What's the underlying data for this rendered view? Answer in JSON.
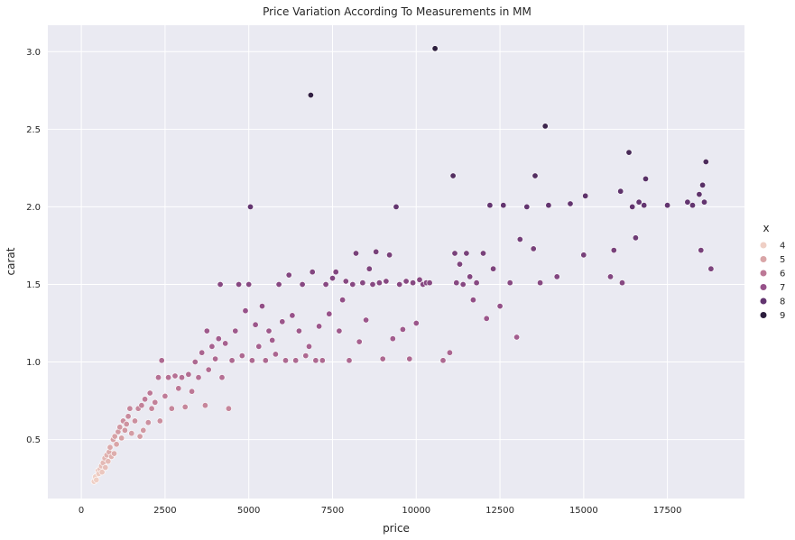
{
  "chart_data": {
    "type": "scatter",
    "title": "Price Variation According To Measurements in MM",
    "xlabel": "price",
    "ylabel": "carat",
    "xlim": [
      -1000,
      19800
    ],
    "ylim": [
      0.12,
      3.17
    ],
    "xticks": [
      0,
      2500,
      5000,
      7500,
      10000,
      12500,
      15000,
      17500
    ],
    "yticks": [
      0.5,
      1.0,
      1.5,
      2.0,
      2.5,
      3.0
    ],
    "xtick_labels": [
      "0",
      "2500",
      "5000",
      "7500",
      "10000",
      "12500",
      "15000",
      "17500"
    ],
    "ytick_labels": [
      "0.5",
      "1.0",
      "1.5",
      "2.0",
      "2.5",
      "3.0"
    ],
    "grid": true,
    "background": "#eaeaf2",
    "hue_variable": "x",
    "legend": {
      "title": "x",
      "placement": "right",
      "items": [
        {
          "label": "4",
          "color": "#efcfc5"
        },
        {
          "label": "5",
          "color": "#d9a5a7"
        },
        {
          "label": "6",
          "color": "#bc7896"
        },
        {
          "label": "7",
          "color": "#97528a"
        },
        {
          "label": "8",
          "color": "#633570"
        },
        {
          "label": "9",
          "color": "#2d1e3e"
        }
      ]
    },
    "points": [
      [
        380,
        0.23,
        3.9
      ],
      [
        420,
        0.26,
        4.0
      ],
      [
        450,
        0.24,
        3.9
      ],
      [
        500,
        0.3,
        4.2
      ],
      [
        520,
        0.28,
        4.1
      ],
      [
        560,
        0.31,
        4.3
      ],
      [
        600,
        0.33,
        4.4
      ],
      [
        620,
        0.29,
        4.2
      ],
      [
        650,
        0.35,
        4.5
      ],
      [
        700,
        0.38,
        4.6
      ],
      [
        720,
        0.32,
        4.4
      ],
      [
        760,
        0.4,
        4.7
      ],
      [
        800,
        0.36,
        4.5
      ],
      [
        830,
        0.42,
        4.8
      ],
      [
        860,
        0.45,
        4.9
      ],
      [
        900,
        0.39,
        4.7
      ],
      [
        950,
        0.5,
        5.1
      ],
      [
        980,
        0.41,
        4.8
      ],
      [
        1000,
        0.52,
        5.1
      ],
      [
        1050,
        0.47,
        5.0
      ],
      [
        1100,
        0.55,
        5.2
      ],
      [
        1150,
        0.58,
        5.3
      ],
      [
        1200,
        0.51,
        5.1
      ],
      [
        1250,
        0.62,
        5.5
      ],
      [
        1300,
        0.56,
        5.3
      ],
      [
        1350,
        0.6,
        5.4
      ],
      [
        1400,
        0.65,
        5.6
      ],
      [
        1450,
        0.7,
        5.7
      ],
      [
        1500,
        0.54,
        5.2
      ],
      [
        1600,
        0.62,
        5.5
      ],
      [
        1700,
        0.7,
        5.7
      ],
      [
        1750,
        0.52,
        5.2
      ],
      [
        1800,
        0.72,
        5.8
      ],
      [
        1850,
        0.56,
        5.3
      ],
      [
        1900,
        0.76,
        5.9
      ],
      [
        2000,
        0.61,
        5.5
      ],
      [
        2050,
        0.8,
        6.0
      ],
      [
        2100,
        0.7,
        5.7
      ],
      [
        2200,
        0.74,
        5.8
      ],
      [
        2300,
        0.9,
        6.2
      ],
      [
        2350,
        0.62,
        5.5
      ],
      [
        2400,
        1.01,
        6.4
      ],
      [
        2500,
        0.78,
        5.9
      ],
      [
        2600,
        0.9,
        6.2
      ],
      [
        2700,
        0.7,
        5.7
      ],
      [
        2800,
        0.91,
        6.2
      ],
      [
        2900,
        0.83,
        6.0
      ],
      [
        3000,
        0.9,
        6.2
      ],
      [
        3100,
        0.71,
        5.7
      ],
      [
        3200,
        0.92,
        6.3
      ],
      [
        3300,
        0.81,
        6.0
      ],
      [
        3400,
        1.0,
        6.4
      ],
      [
        3500,
        0.9,
        6.2
      ],
      [
        3600,
        1.06,
        6.5
      ],
      [
        3700,
        0.72,
        5.7
      ],
      [
        3750,
        1.2,
        6.8
      ],
      [
        3800,
        0.95,
        6.3
      ],
      [
        3900,
        1.1,
        6.6
      ],
      [
        4000,
        1.02,
        6.4
      ],
      [
        4100,
        1.15,
        6.7
      ],
      [
        4150,
        1.5,
        7.3
      ],
      [
        4200,
        0.9,
        6.2
      ],
      [
        4300,
        1.12,
        6.6
      ],
      [
        4400,
        0.7,
        5.7
      ],
      [
        4500,
        1.01,
        6.4
      ],
      [
        4600,
        1.2,
        6.8
      ],
      [
        4700,
        1.5,
        7.3
      ],
      [
        4800,
        1.04,
        6.4
      ],
      [
        4900,
        1.33,
        7.0
      ],
      [
        5000,
        1.5,
        7.3
      ],
      [
        5050,
        2.0,
        8.0
      ],
      [
        5100,
        1.01,
        6.4
      ],
      [
        5200,
        1.24,
        6.9
      ],
      [
        5300,
        1.1,
        6.6
      ],
      [
        5400,
        1.36,
        7.1
      ],
      [
        5500,
        1.01,
        6.4
      ],
      [
        5600,
        1.2,
        6.8
      ],
      [
        5700,
        1.14,
        6.7
      ],
      [
        5800,
        1.05,
        6.5
      ],
      [
        5900,
        1.5,
        7.3
      ],
      [
        6000,
        1.26,
        6.9
      ],
      [
        6100,
        1.01,
        6.4
      ],
      [
        6200,
        1.56,
        7.4
      ],
      [
        6300,
        1.3,
        7.0
      ],
      [
        6400,
        1.01,
        6.4
      ],
      [
        6500,
        1.2,
        6.8
      ],
      [
        6600,
        1.5,
        7.3
      ],
      [
        6700,
        1.04,
        6.4
      ],
      [
        6800,
        1.1,
        6.6
      ],
      [
        6850,
        2.72,
        8.9
      ],
      [
        6900,
        1.58,
        7.4
      ],
      [
        7000,
        1.01,
        6.4
      ],
      [
        7100,
        1.23,
        6.9
      ],
      [
        7200,
        1.01,
        6.4
      ],
      [
        7300,
        1.5,
        7.3
      ],
      [
        7400,
        1.31,
        7.0
      ],
      [
        7500,
        1.54,
        7.4
      ],
      [
        7600,
        1.58,
        7.4
      ],
      [
        7700,
        1.2,
        6.8
      ],
      [
        7800,
        1.4,
        7.1
      ],
      [
        7900,
        1.52,
        7.3
      ],
      [
        8000,
        1.01,
        6.4
      ],
      [
        8100,
        1.5,
        7.3
      ],
      [
        8200,
        1.7,
        7.6
      ],
      [
        8300,
        1.13,
        6.6
      ],
      [
        8400,
        1.51,
        7.3
      ],
      [
        8500,
        1.27,
        6.9
      ],
      [
        8600,
        1.6,
        7.5
      ],
      [
        8700,
        1.5,
        7.3
      ],
      [
        8800,
        1.71,
        7.6
      ],
      [
        8900,
        1.51,
        7.3
      ],
      [
        9000,
        1.02,
        6.4
      ],
      [
        9100,
        1.52,
        7.3
      ],
      [
        9200,
        1.69,
        7.6
      ],
      [
        9300,
        1.15,
        6.7
      ],
      [
        9400,
        2.0,
        8.0
      ],
      [
        9500,
        1.5,
        7.3
      ],
      [
        9600,
        1.21,
        6.8
      ],
      [
        9700,
        1.52,
        7.3
      ],
      [
        9800,
        1.02,
        6.4
      ],
      [
        9900,
        1.51,
        7.3
      ],
      [
        10000,
        1.25,
        6.9
      ],
      [
        10100,
        1.53,
        7.3
      ],
      [
        10200,
        1.5,
        7.3
      ],
      [
        10300,
        1.51,
        7.3
      ],
      [
        10400,
        1.51,
        7.3
      ],
      [
        10560,
        3.02,
        9.2
      ],
      [
        10800,
        1.01,
        6.4
      ],
      [
        11000,
        1.06,
        6.5
      ],
      [
        11100,
        2.2,
        8.3
      ],
      [
        11150,
        1.7,
        7.6
      ],
      [
        11200,
        1.51,
        7.3
      ],
      [
        11300,
        1.63,
        7.5
      ],
      [
        11400,
        1.5,
        7.3
      ],
      [
        11500,
        1.7,
        7.6
      ],
      [
        11600,
        1.55,
        7.4
      ],
      [
        11700,
        1.4,
        7.1
      ],
      [
        11800,
        1.51,
        7.3
      ],
      [
        12000,
        1.7,
        7.6
      ],
      [
        12100,
        1.28,
        6.9
      ],
      [
        12200,
        2.01,
        8.0
      ],
      [
        12300,
        1.6,
        7.5
      ],
      [
        12500,
        1.36,
        7.1
      ],
      [
        12600,
        2.01,
        8.0
      ],
      [
        12800,
        1.51,
        7.3
      ],
      [
        13000,
        1.16,
        6.7
      ],
      [
        13100,
        1.79,
        7.7
      ],
      [
        13300,
        2.0,
        8.0
      ],
      [
        13500,
        1.73,
        7.6
      ],
      [
        13550,
        2.2,
        8.3
      ],
      [
        13700,
        1.51,
        7.3
      ],
      [
        13850,
        2.52,
        8.7
      ],
      [
        13950,
        2.01,
        8.0
      ],
      [
        14200,
        1.55,
        7.4
      ],
      [
        14600,
        2.02,
        8.0
      ],
      [
        15000,
        1.69,
        7.6
      ],
      [
        15050,
        2.07,
        8.1
      ],
      [
        15800,
        1.55,
        7.4
      ],
      [
        15900,
        1.72,
        7.6
      ],
      [
        16100,
        2.1,
        8.1
      ],
      [
        16150,
        1.51,
        7.3
      ],
      [
        16350,
        2.35,
        8.5
      ],
      [
        16450,
        2.0,
        8.0
      ],
      [
        16550,
        1.8,
        7.8
      ],
      [
        16650,
        2.03,
        8.0
      ],
      [
        16800,
        2.01,
        8.0
      ],
      [
        16850,
        2.18,
        8.2
      ],
      [
        17500,
        2.01,
        8.0
      ],
      [
        18100,
        2.03,
        8.0
      ],
      [
        18250,
        2.01,
        8.0
      ],
      [
        18450,
        2.08,
        8.1
      ],
      [
        18500,
        1.72,
        7.6
      ],
      [
        18550,
        2.14,
        8.2
      ],
      [
        18600,
        2.03,
        8.0
      ],
      [
        18650,
        2.29,
        8.4
      ],
      [
        18800,
        1.6,
        7.5
      ]
    ]
  }
}
